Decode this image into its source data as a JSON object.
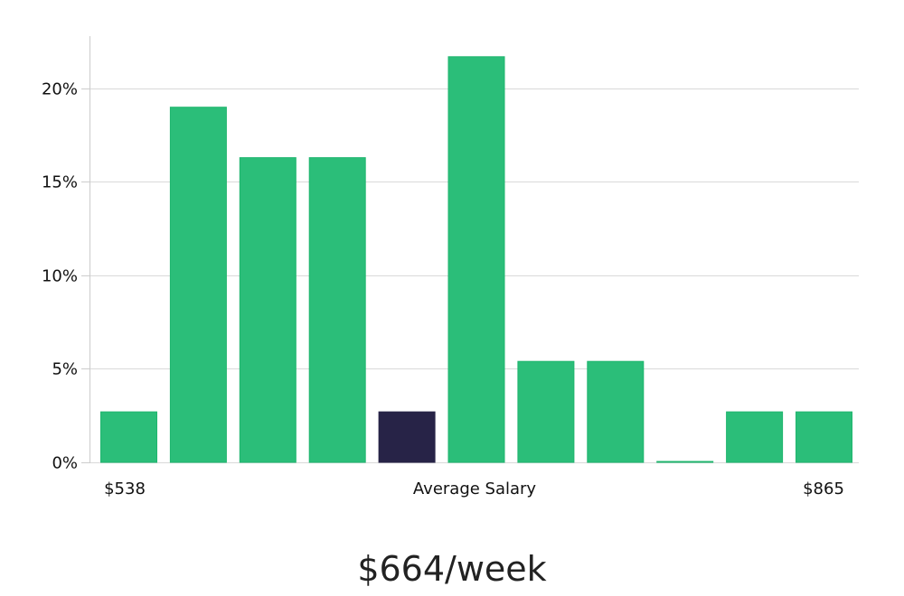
{
  "chart_data": {
    "type": "bar",
    "bar_values": [
      2.7,
      19.0,
      16.3,
      16.3,
      2.7,
      21.7,
      5.4,
      5.4,
      0,
      2.7,
      2.7
    ],
    "highlight_index": 4,
    "y_ticks": [
      {
        "value": 0,
        "label": "0%"
      },
      {
        "value": 5,
        "label": "5%"
      },
      {
        "value": 10,
        "label": "10%"
      },
      {
        "value": 15,
        "label": "15%"
      },
      {
        "value": 20,
        "label": "20%"
      }
    ],
    "ylim": [
      0,
      22.8
    ],
    "grid": true,
    "x_labels": {
      "min": "$538",
      "center": "Average Salary",
      "max": "$865"
    },
    "colors": {
      "bar": "#2bbe79",
      "bar_border": "#1fb56e",
      "highlight": "#272347",
      "grid": "#d9d9d9",
      "axis": "#cccccc"
    }
  },
  "headline": "$664/week"
}
